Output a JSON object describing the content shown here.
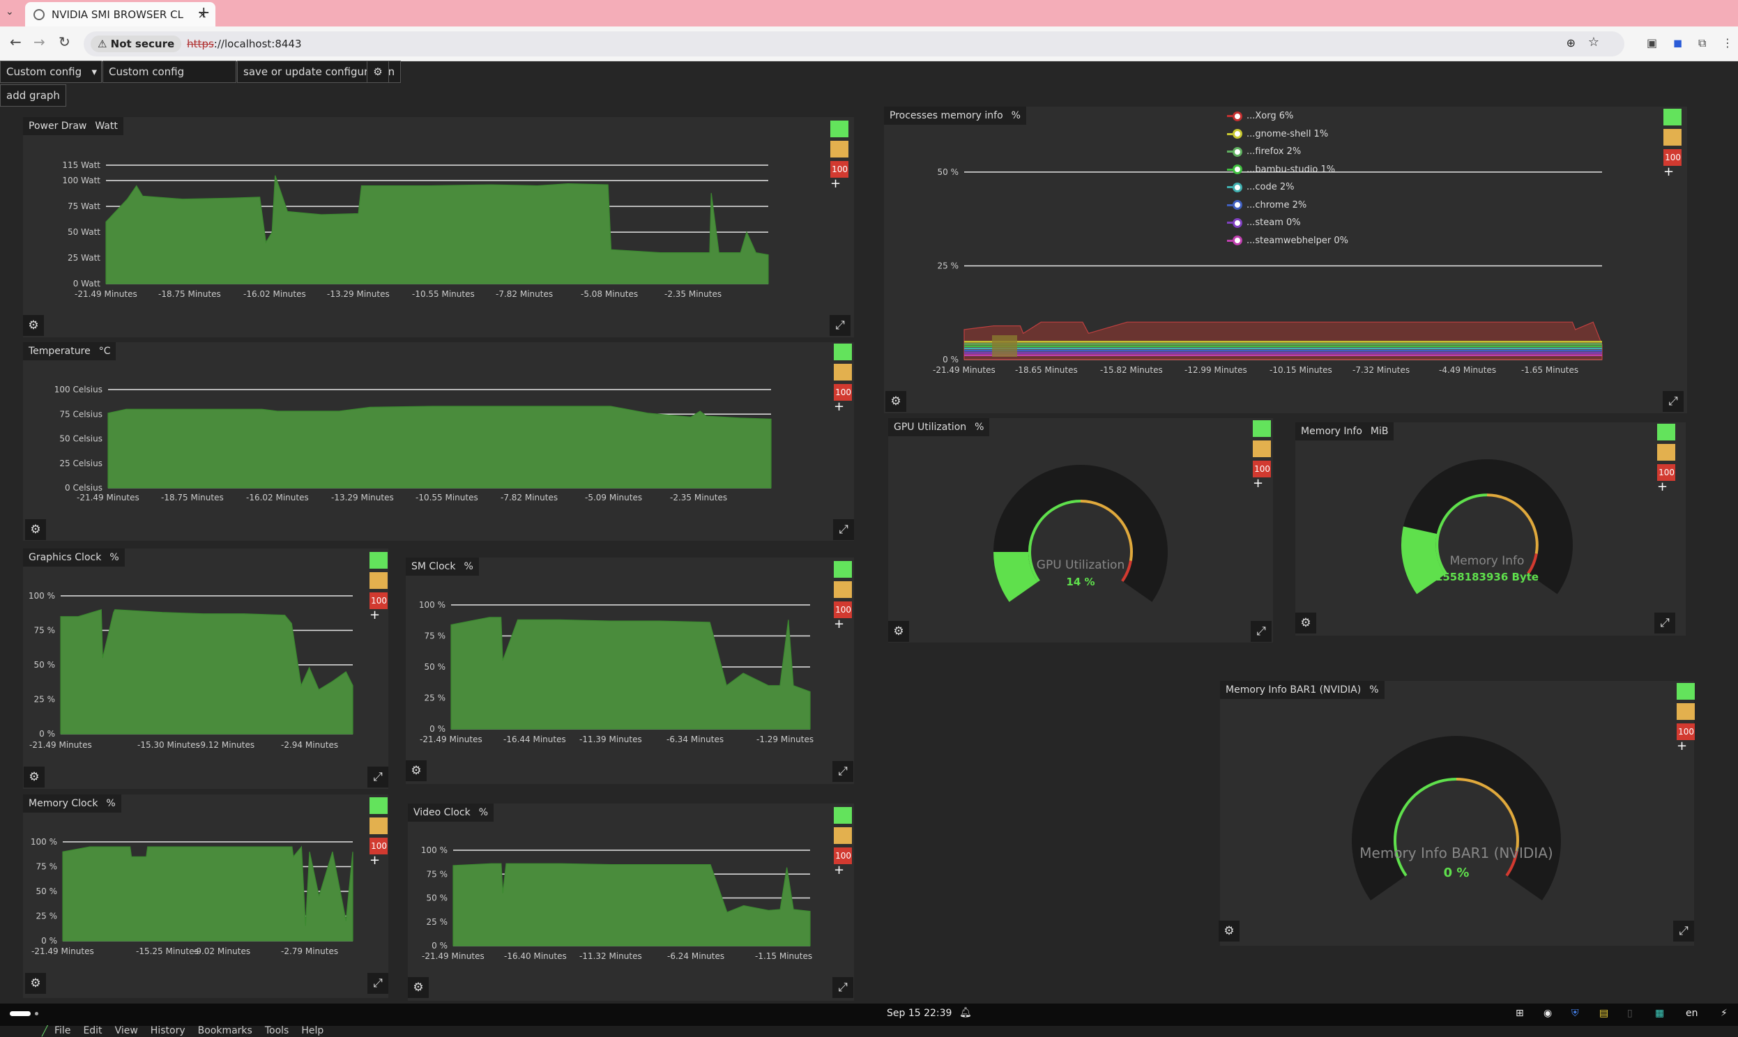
{
  "browser": {
    "tab_title": "NVIDIA SMI BROWSER CL",
    "close_glyph": "×",
    "new_tab": "+",
    "not_secure": "Not secure",
    "url_scheme": "https",
    "url_rest": "://localhost:8443"
  },
  "toolbar": {
    "select_value": "Custom config",
    "config_name": "Custom config",
    "save_label": "save or update configuration",
    "add_graph_label": "add graph"
  },
  "thresholds": {
    "red_label": "100"
  },
  "charts": {
    "power": {
      "title": "Power Draw",
      "unit": "Watt"
    },
    "temp": {
      "title": "Temperature",
      "unit": "°C"
    },
    "gclock": {
      "title": "Graphics Clock",
      "unit": "%"
    },
    "smclock": {
      "title": "SM Clock",
      "unit": "%"
    },
    "memclock": {
      "title": "Memory Clock",
      "unit": "%"
    },
    "vclock": {
      "title": "Video Clock",
      "unit": "%"
    },
    "procmem": {
      "title": "Processes memory info",
      "unit": "%"
    }
  },
  "chart_data": [
    {
      "type": "area",
      "id": "power",
      "title": "Power Draw",
      "ylim": [
        0,
        115
      ],
      "yticks": [
        0,
        25,
        50,
        75,
        100,
        115
      ],
      "ylabels": [
        "0 Watt",
        "25 Watt",
        "50 Watt",
        "75 Watt",
        "100 Watt",
        "115 Watt"
      ],
      "xlabels": [
        "-21.49 Minutes",
        "-18.75 Minutes",
        "-16.02 Minutes",
        "-13.29 Minutes",
        "-10.55 Minutes",
        "-7.82 Minutes",
        "-5.08 Minutes",
        "-2.35 Minutes"
      ],
      "x": [
        -21.49,
        -20.8,
        -20.5,
        -20.3,
        -19,
        -17.5,
        -16.5,
        -16.3,
        -16.1,
        -16.0,
        -15.6,
        -14.5,
        -13.3,
        -13.2,
        -11,
        -9,
        -7.5,
        -6.5,
        -5.2,
        -5.1,
        -3.5,
        -2.5,
        -1.9,
        -1.85,
        -1.6,
        -1.3,
        -0.9,
        -0.7,
        -0.4,
        0
      ],
      "values": [
        60,
        82,
        95,
        85,
        82,
        83,
        84,
        40,
        50,
        105,
        70,
        67,
        68,
        95,
        95,
        96,
        95,
        97,
        96,
        33,
        30,
        30,
        30,
        88,
        30,
        30,
        30,
        50,
        30,
        28
      ]
    },
    {
      "type": "area",
      "id": "temp",
      "title": "Temperature",
      "ylim": [
        0,
        100
      ],
      "yticks": [
        0,
        25,
        50,
        75,
        100
      ],
      "ylabels": [
        "0 Celsius",
        "25 Celsius",
        "50 Celsius",
        "75 Celsius",
        "100 Celsius"
      ],
      "xlabels": [
        "-21.49 Minutes",
        "-18.75 Minutes",
        "-16.02 Minutes",
        "-13.29 Minutes",
        "-10.55 Minutes",
        "-7.82 Minutes",
        "-5.09 Minutes",
        "-2.35 Minutes"
      ],
      "x": [
        -21.49,
        -20.9,
        -16.5,
        -16.0,
        -14,
        -13.0,
        -11,
        -8,
        -6,
        -5.2,
        -4,
        -2.6,
        -2.3,
        -2.1,
        -1,
        0
      ],
      "values": [
        76,
        80,
        80,
        78,
        78,
        82,
        83,
        83,
        83,
        83,
        76,
        72,
        78,
        73,
        71,
        70
      ]
    },
    {
      "type": "area",
      "id": "gclock",
      "title": "Graphics Clock",
      "ylim": [
        0,
        100
      ],
      "yticks": [
        0,
        25,
        50,
        75,
        100
      ],
      "ylabels": [
        "0 %",
        "25 %",
        "50 %",
        "75 %",
        "100 %"
      ],
      "xlabels": [
        "-21.49 Minutes",
        "-15.30 Minutes",
        "-9.12 Minutes",
        "-2.94 Minutes"
      ],
      "x": [
        -21.49,
        -20.2,
        -18.5,
        -18.4,
        -17.6,
        -17.5,
        -14,
        -11,
        -8,
        -5,
        -4.5,
        -3.8,
        -3.2,
        -2.5,
        -1.5,
        -0.5,
        0
      ],
      "values": [
        85,
        85,
        90,
        55,
        88,
        90,
        88,
        87,
        87,
        86,
        80,
        35,
        48,
        32,
        38,
        45,
        35
      ]
    },
    {
      "type": "area",
      "id": "smclock",
      "title": "SM Clock",
      "ylim": [
        0,
        100
      ],
      "yticks": [
        0,
        25,
        50,
        75,
        100
      ],
      "ylabels": [
        "0 %",
        "25 %",
        "50 %",
        "75 %",
        "100 %"
      ],
      "xlabels": [
        "-21.49 Minutes",
        "-16.44 Minutes",
        "-11.39 Minutes",
        "-6.34 Minutes",
        "-1.29 Minutes"
      ],
      "x": [
        -21.49,
        -19.2,
        -18.5,
        -18.4,
        -17.5,
        -15,
        -12,
        -9,
        -6,
        -5.0,
        -4.0,
        -2.5,
        -1.8,
        -1.3,
        -1.0,
        0
      ],
      "values": [
        84,
        90,
        90,
        55,
        88,
        88,
        87,
        87,
        86,
        35,
        45,
        35,
        35,
        88,
        35,
        30
      ]
    },
    {
      "type": "area",
      "id": "memclock",
      "title": "Memory Clock",
      "ylim": [
        0,
        100
      ],
      "yticks": [
        0,
        25,
        50,
        75,
        100
      ],
      "ylabels": [
        "0 %",
        "25 %",
        "50 %",
        "75 %",
        "100 %"
      ],
      "xlabels": [
        "-21.49 Minutes",
        "-15.25 Minutes",
        "-9.02 Minutes",
        "-2.79 Minutes"
      ],
      "x": [
        -21.49,
        -19.5,
        -16.5,
        -16.4,
        -15.3,
        -15.2,
        -11,
        -7,
        -4.5,
        -4.4,
        -3.8,
        -3.5,
        -3.2,
        -2.5,
        -1.5,
        -0.5,
        0
      ],
      "values": [
        90,
        95,
        95,
        85,
        85,
        95,
        95,
        95,
        95,
        85,
        95,
        15,
        90,
        45,
        90,
        20,
        90
      ]
    },
    {
      "type": "area",
      "id": "vclock",
      "title": "Video Clock",
      "ylim": [
        0,
        100
      ],
      "yticks": [
        0,
        25,
        50,
        75,
        100
      ],
      "ylabels": [
        "0 %",
        "25 %",
        "50 %",
        "75 %",
        "100 %"
      ],
      "xlabels": [
        "-21.49 Minutes",
        "-16.40 Minutes",
        "-11.32 Minutes",
        "-6.24 Minutes",
        "-1.15 Minutes"
      ],
      "x": [
        -21.49,
        -19.2,
        -18.6,
        -18.5,
        -18.3,
        -15,
        -12,
        -9,
        -6,
        -5.0,
        -4.0,
        -2.5,
        -1.8,
        -1.4,
        -1.0,
        0
      ],
      "values": [
        84,
        86,
        86,
        55,
        86,
        86,
        85,
        85,
        85,
        35,
        42,
        37,
        38,
        82,
        38,
        36
      ]
    },
    {
      "type": "area",
      "id": "procmem",
      "title": "Processes memory info",
      "ylim": [
        0,
        55
      ],
      "yticks": [
        0,
        25,
        50
      ],
      "ylabels": [
        "0 %",
        "25 %",
        "50 %"
      ],
      "xlabels": [
        "-21.49 Minutes",
        "-18.65 Minutes",
        "-15.82 Minutes",
        "-12.99 Minutes",
        "-10.15 Minutes",
        "-7.32 Minutes",
        "-4.49 Minutes",
        "-1.65 Minutes"
      ],
      "x": [
        -21.49,
        -20.5,
        -19.6,
        -19.5,
        -18.9,
        -17.5,
        -17.3,
        -16.0,
        -15.0,
        -10,
        -5,
        -1.0,
        -0.9,
        -0.3,
        0
      ],
      "values": [
        8,
        9,
        9,
        7,
        10,
        10,
        7,
        10,
        10,
        10,
        10,
        10,
        8,
        10,
        4
      ],
      "series": [
        {
          "name": "...Xorg 6%",
          "color": "#c43030"
        },
        {
          "name": "...gnome-shell 1%",
          "color": "#c8c830"
        },
        {
          "name": "...firefox 2%",
          "color": "#60b060"
        },
        {
          "name": "...bambu-studio 1%",
          "color": "#40c040"
        },
        {
          "name": "...code 2%",
          "color": "#40b0b0"
        },
        {
          "name": "...chrome 2%",
          "color": "#4060c0"
        },
        {
          "name": "...steam 0%",
          "color": "#8040c0"
        },
        {
          "name": "...steamwebhelper 0%",
          "color": "#c040b0"
        }
      ]
    }
  ],
  "gauges": {
    "gpu": {
      "title": "GPU Utilization",
      "unit": "%",
      "label": "GPU Utilization",
      "value_text": "14 %",
      "fraction": 0.14
    },
    "mem": {
      "title": "Memory Info",
      "unit": "MiB",
      "label": "Memory Info",
      "value_text": "1558183936 Byte",
      "fraction": 0.19
    },
    "bar1": {
      "title": "Memory Info BAR1 (NVIDIA)",
      "unit": "%",
      "label": "Memory Info BAR1 (NVIDIA)",
      "value_text": "0 %",
      "fraction": 0.0
    }
  },
  "taskbar": {
    "datetime": "Sep 15  22:39",
    "lang": "en"
  },
  "menubar": [
    "File",
    "Edit",
    "View",
    "History",
    "Bookmarks",
    "Tools",
    "Help"
  ]
}
